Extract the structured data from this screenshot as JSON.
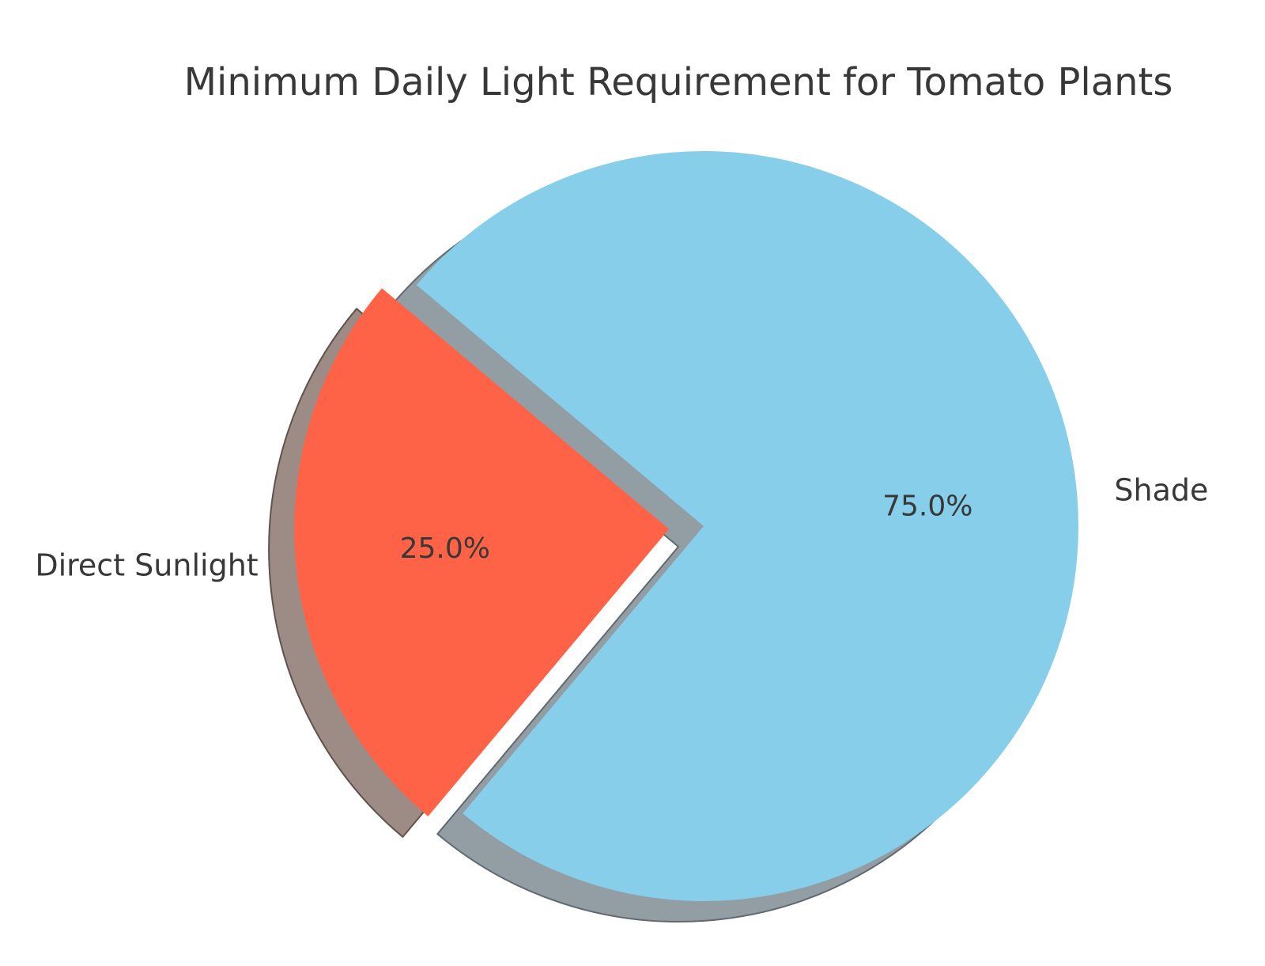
{
  "page": {
    "background": "#ffffff"
  },
  "chart_data": {
    "type": "pie",
    "title": "Minimum Daily Light Requirement for Tomato Plants",
    "labels": [
      "Direct Sunlight",
      "Shade"
    ],
    "values": [
      25.0,
      75.0
    ],
    "value_labels": [
      "25.0%",
      "75.0%"
    ],
    "unit": "percent",
    "colors": [
      "#ff6347",
      "#87ceeb"
    ],
    "shadow_colors": [
      "#9d8b85",
      "#929da4"
    ],
    "shadow_edge_colors": [
      "#60524d",
      "#606a70"
    ],
    "text_color": "#383838",
    "startangle": 140,
    "counterclock": true,
    "explode": [
      0.093,
      0
    ],
    "shadow": true,
    "labeldistance": 1.1,
    "pctdistance": 0.6,
    "legend": "none",
    "grid": false
  }
}
